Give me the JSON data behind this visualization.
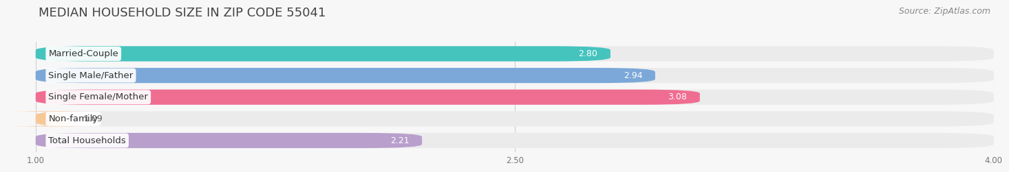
{
  "title": "MEDIAN HOUSEHOLD SIZE IN ZIP CODE 55041",
  "source": "Source: ZipAtlas.com",
  "categories": [
    "Married-Couple",
    "Single Male/Father",
    "Single Female/Mother",
    "Non-family",
    "Total Households"
  ],
  "values": [
    2.8,
    2.94,
    3.08,
    1.09,
    2.21
  ],
  "bar_colors": [
    "#45c4be",
    "#7ba8d8",
    "#f06d92",
    "#f5c896",
    "#b89fcc"
  ],
  "bar_bg_color": "#ebebeb",
  "xlim_min": 1.0,
  "xlim_max": 4.0,
  "xticks": [
    1.0,
    2.5,
    4.0
  ],
  "xticklabels": [
    "1.00",
    "2.50",
    "4.00"
  ],
  "title_fontsize": 13,
  "source_fontsize": 9,
  "label_fontsize": 9.5,
  "value_fontsize": 9,
  "background_color": "#f7f7f7",
  "bar_height": 0.7,
  "bar_gap": 0.3
}
